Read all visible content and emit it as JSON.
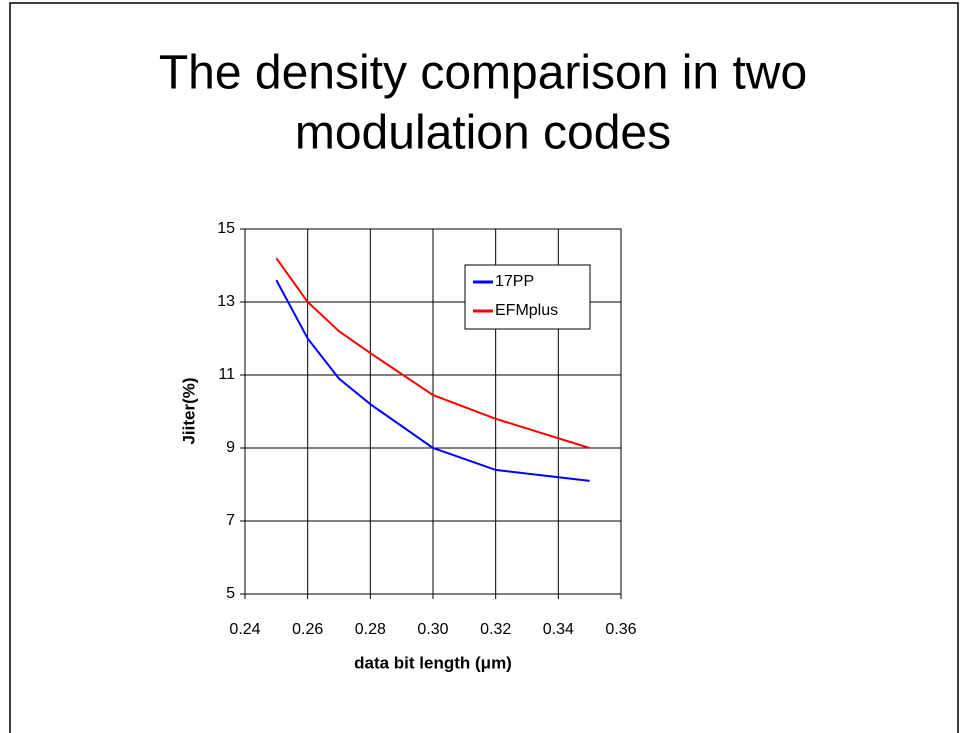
{
  "chart_data": {
    "type": "line",
    "title_lines": [
      "The density comparison in two",
      "modulation codes"
    ],
    "xlabel": "data bit length (μm)",
    "ylabel": "Jiiter(%)",
    "x": [
      0.25,
      0.26,
      0.27,
      0.28,
      0.3,
      0.32,
      0.35
    ],
    "series": [
      {
        "name": "17PP",
        "color": "#0000ff",
        "values": [
          13.6,
          12.0,
          10.9,
          10.2,
          9.0,
          8.4,
          8.1
        ]
      },
      {
        "name": "EFMplus",
        "color": "#ff0000",
        "values": [
          14.2,
          13.0,
          12.2,
          11.6,
          10.45,
          9.8,
          9.0
        ]
      }
    ],
    "xlim": [
      0.24,
      0.36
    ],
    "xticks": [
      0.24,
      0.26,
      0.28,
      {
        "value": 0.3,
        "label": "0.30"
      },
      0.32,
      0.34,
      0.36
    ],
    "ylim": [
      5,
      15
    ],
    "yticks": [
      5,
      7,
      9,
      11,
      13,
      15
    ],
    "grid": true,
    "legend": "upper right"
  }
}
